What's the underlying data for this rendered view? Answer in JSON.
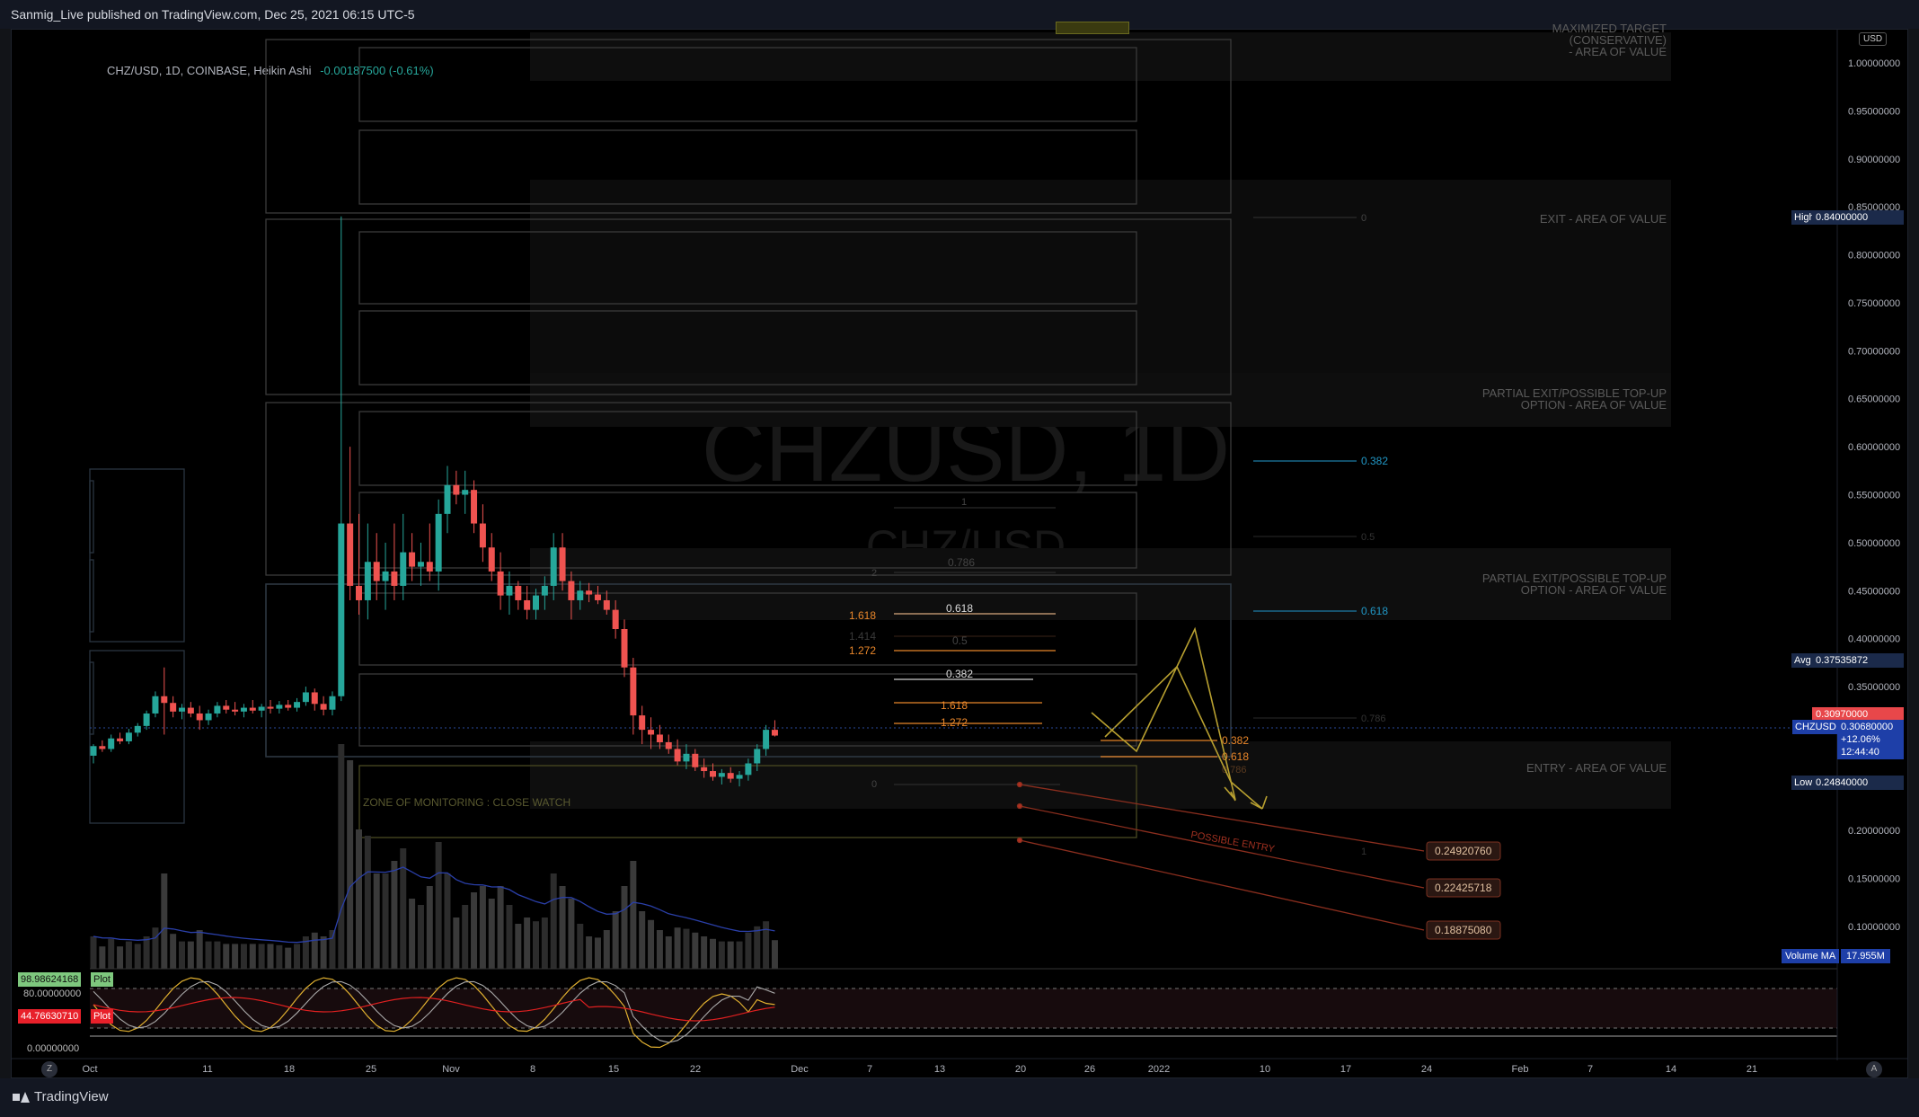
{
  "header": {
    "published": "Sanmig_Live published on TradingView.com, Dec 25, 2021 06:15 UTC-5"
  },
  "footer": {
    "brand": "TradingView"
  },
  "legend": {
    "symbol": "CHZ/USD, 1D, COINBASE, Heikin Ashi",
    "change": "-0.00187500 (-0.61%)"
  },
  "watermark": {
    "ticker": "CHZUSD, 1D",
    "pair": "CHZ/USD"
  },
  "currency": "USD",
  "colors": {
    "up": "#26a69a",
    "down": "#ef5350",
    "fib": "#e8862a",
    "target": "#b8a030",
    "zone_text": "#4a4a3a",
    "fib_blue": "#2196c4"
  },
  "price_axis": {
    "ticks": [
      "1.00000000",
      "0.95000000",
      "0.90000000",
      "0.85000000",
      "0.80000000",
      "0.75000000",
      "0.70000000",
      "0.65000000",
      "0.60000000",
      "0.55000000",
      "0.50000000",
      "0.45000000",
      "0.40000000",
      "0.35000000",
      "0.30000000",
      "0.25000000",
      "0.20000000",
      "0.15000000",
      "0.10000000"
    ],
    "labels": {
      "high": {
        "name": "High",
        "value": "0.84000000"
      },
      "avg": {
        "name": "Avg",
        "value": "0.37535872"
      },
      "prev_close": {
        "value": "0.30970000"
      },
      "current": {
        "name": "CHZUSD",
        "value": "0.30680000",
        "change": "+12.06%",
        "countdown": "12:44:40"
      },
      "low": {
        "name": "Low",
        "value": "0.24840000"
      }
    },
    "volume_ma": {
      "name": "Volume MA",
      "value": "17.955M"
    }
  },
  "zones": {
    "max_target": [
      "MAXIMIZED TARGET",
      "(CONSERVATIVE)",
      "- AREA OF VALUE"
    ],
    "exit": "EXIT - AREA OF VALUE",
    "partial_1": [
      "PARTIAL EXIT/POSSIBLE TOP-UP",
      "OPTION - AREA OF VALUE"
    ],
    "partial_2": [
      "PARTIAL EXIT/POSSIBLE TOP-UP",
      "OPTION - AREA OF VALUE"
    ],
    "entry": "ENTRY - AREA OF VALUE",
    "monitoring": "ZONE OF MONITORING : CLOSE WATCH",
    "possible_entry": "POSSIBLE ENTRY"
  },
  "fib_right": {
    "f0382": "0.382",
    "f05": "0.5",
    "f0618": "0.618",
    "f0786": "0.786",
    "f0": "0",
    "f1": "1"
  },
  "fib_mid": {
    "a1618": "1.618",
    "a1414": "1.414",
    "a1272": "1.272",
    "b0618": "0.618",
    "b05": "0.5",
    "b0786": "0.786",
    "b0382": "0.382",
    "c1618": "1.618",
    "c1272": "1.272",
    "d0382": "0.382",
    "d0618": "0.618",
    "d0786": "0.786",
    "one": "1",
    "two": "2",
    "zero": "0"
  },
  "targets": [
    "0.24920760",
    "0.22425718",
    "0.18875080"
  ],
  "oscillator": {
    "plot1": {
      "value": "98.98624168",
      "name": "Plot"
    },
    "plot2": {
      "value": "44.76630710",
      "name": "Plot"
    },
    "axis": [
      "80.00000000",
      "0.00000000"
    ]
  },
  "time_axis": [
    "Oct",
    "11",
    "18",
    "25",
    "Nov",
    "8",
    "15",
    "22",
    "Dec",
    "7",
    "13",
    "20",
    "26",
    "2022",
    "10",
    "17",
    "24",
    "Feb",
    "7",
    "14",
    "21"
  ],
  "chart_data": {
    "type": "candlestick",
    "symbol": "CHZ/USD",
    "interval": "1D",
    "style": "Heikin Ashi",
    "ylim": [
      0.05,
      1.05
    ],
    "x_start": "2021-09-30",
    "candles": [
      [
        0.278,
        0.29,
        0.27,
        0.288
      ],
      [
        0.288,
        0.294,
        0.282,
        0.285
      ],
      [
        0.285,
        0.3,
        0.282,
        0.296
      ],
      [
        0.296,
        0.302,
        0.29,
        0.293
      ],
      [
        0.293,
        0.306,
        0.29,
        0.302
      ],
      [
        0.302,
        0.312,
        0.298,
        0.309
      ],
      [
        0.309,
        0.325,
        0.305,
        0.322
      ],
      [
        0.322,
        0.345,
        0.318,
        0.34
      ],
      [
        0.34,
        0.37,
        0.3,
        0.333
      ],
      [
        0.333,
        0.34,
        0.318,
        0.324
      ],
      [
        0.324,
        0.332,
        0.316,
        0.328
      ],
      [
        0.328,
        0.334,
        0.318,
        0.322
      ],
      [
        0.322,
        0.33,
        0.305,
        0.315
      ],
      [
        0.315,
        0.326,
        0.31,
        0.322
      ],
      [
        0.322,
        0.334,
        0.318,
        0.33
      ],
      [
        0.33,
        0.336,
        0.322,
        0.326
      ],
      [
        0.326,
        0.334,
        0.32,
        0.324
      ],
      [
        0.324,
        0.332,
        0.318,
        0.328
      ],
      [
        0.328,
        0.336,
        0.322,
        0.325
      ],
      [
        0.325,
        0.332,
        0.318,
        0.329
      ],
      [
        0.329,
        0.336,
        0.322,
        0.327
      ],
      [
        0.327,
        0.335,
        0.322,
        0.331
      ],
      [
        0.331,
        0.336,
        0.325,
        0.328
      ],
      [
        0.328,
        0.338,
        0.324,
        0.334
      ],
      [
        0.334,
        0.35,
        0.33,
        0.344
      ],
      [
        0.344,
        0.348,
        0.325,
        0.332
      ],
      [
        0.332,
        0.34,
        0.32,
        0.326
      ],
      [
        0.326,
        0.345,
        0.32,
        0.34
      ],
      [
        0.34,
        0.84,
        0.335,
        0.52
      ],
      [
        0.52,
        0.6,
        0.44,
        0.455
      ],
      [
        0.455,
        0.53,
        0.425,
        0.44
      ],
      [
        0.44,
        0.52,
        0.42,
        0.48
      ],
      [
        0.48,
        0.51,
        0.44,
        0.46
      ],
      [
        0.46,
        0.5,
        0.43,
        0.47
      ],
      [
        0.47,
        0.52,
        0.44,
        0.455
      ],
      [
        0.455,
        0.53,
        0.44,
        0.49
      ],
      [
        0.49,
        0.51,
        0.46,
        0.475
      ],
      [
        0.475,
        0.5,
        0.455,
        0.48
      ],
      [
        0.48,
        0.52,
        0.46,
        0.47
      ],
      [
        0.47,
        0.545,
        0.45,
        0.53
      ],
      [
        0.53,
        0.58,
        0.51,
        0.56
      ],
      [
        0.56,
        0.575,
        0.54,
        0.55
      ],
      [
        0.55,
        0.575,
        0.53,
        0.555
      ],
      [
        0.555,
        0.565,
        0.51,
        0.52
      ],
      [
        0.52,
        0.54,
        0.48,
        0.495
      ],
      [
        0.495,
        0.51,
        0.46,
        0.47
      ],
      [
        0.47,
        0.49,
        0.43,
        0.445
      ],
      [
        0.445,
        0.47,
        0.425,
        0.455
      ],
      [
        0.455,
        0.46,
        0.43,
        0.44
      ],
      [
        0.44,
        0.455,
        0.42,
        0.43
      ],
      [
        0.43,
        0.452,
        0.42,
        0.445
      ],
      [
        0.445,
        0.465,
        0.43,
        0.455
      ],
      [
        0.455,
        0.51,
        0.44,
        0.495
      ],
      [
        0.495,
        0.51,
        0.45,
        0.46
      ],
      [
        0.46,
        0.47,
        0.42,
        0.44
      ],
      [
        0.44,
        0.46,
        0.43,
        0.45
      ],
      [
        0.45,
        0.458,
        0.438,
        0.446
      ],
      [
        0.446,
        0.455,
        0.436,
        0.44
      ],
      [
        0.44,
        0.45,
        0.425,
        0.43
      ],
      [
        0.43,
        0.44,
        0.4,
        0.41
      ],
      [
        0.41,
        0.42,
        0.36,
        0.37
      ],
      [
        0.37,
        0.38,
        0.3,
        0.32
      ],
      [
        0.32,
        0.33,
        0.29,
        0.305
      ],
      [
        0.305,
        0.318,
        0.285,
        0.3
      ],
      [
        0.3,
        0.31,
        0.285,
        0.292
      ],
      [
        0.292,
        0.3,
        0.28,
        0.285
      ],
      [
        0.285,
        0.295,
        0.268,
        0.272
      ],
      [
        0.272,
        0.29,
        0.264,
        0.28
      ],
      [
        0.28,
        0.285,
        0.262,
        0.266
      ],
      [
        0.266,
        0.275,
        0.255,
        0.262
      ],
      [
        0.262,
        0.27,
        0.252,
        0.256
      ],
      [
        0.256,
        0.264,
        0.248,
        0.26
      ],
      [
        0.26,
        0.266,
        0.25,
        0.254
      ],
      [
        0.254,
        0.262,
        0.246,
        0.258
      ],
      [
        0.258,
        0.275,
        0.252,
        0.27
      ],
      [
        0.27,
        0.29,
        0.262,
        0.285
      ],
      [
        0.285,
        0.31,
        0.278,
        0.305
      ],
      [
        0.305,
        0.315,
        0.298,
        0.299
      ]
    ]
  }
}
